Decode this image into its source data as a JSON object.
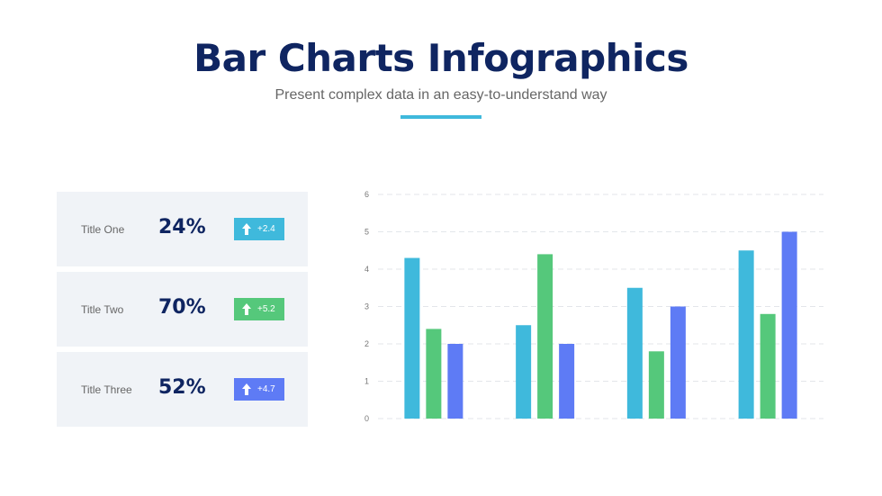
{
  "header": {
    "title": "Bar Charts Infographics",
    "subtitle": "Present complex data in an easy-to-understand way"
  },
  "cards": [
    {
      "label": "Title One",
      "percent": "24%",
      "change": "+2.4",
      "color": "#3fb9dc",
      "icon": "arrow-up-icon"
    },
    {
      "label": "Title Two",
      "percent": "70%",
      "change": "+5.2",
      "color": "#55c87b",
      "icon": "arrow-up-icon"
    },
    {
      "label": "Title Three",
      "percent": "52%",
      "change": "+4.7",
      "color": "#5e7bf5",
      "icon": "arrow-up-icon"
    }
  ],
  "chart_data": {
    "type": "bar",
    "categories": [
      "",
      "",
      "",
      ""
    ],
    "series": [
      {
        "values": [
          4.3,
          2.5,
          3.5,
          4.5
        ],
        "color": "#3fb9dc"
      },
      {
        "values": [
          2.4,
          4.4,
          1.8,
          2.8
        ],
        "color": "#55c87b"
      },
      {
        "values": [
          2,
          2,
          3,
          5
        ],
        "color": "#5e7bf5"
      }
    ],
    "yticks": [
      "0",
      "1",
      "2",
      "3",
      "4",
      "5",
      "6"
    ],
    "ylim": [
      0,
      6
    ],
    "grid": true,
    "legend": "none"
  }
}
